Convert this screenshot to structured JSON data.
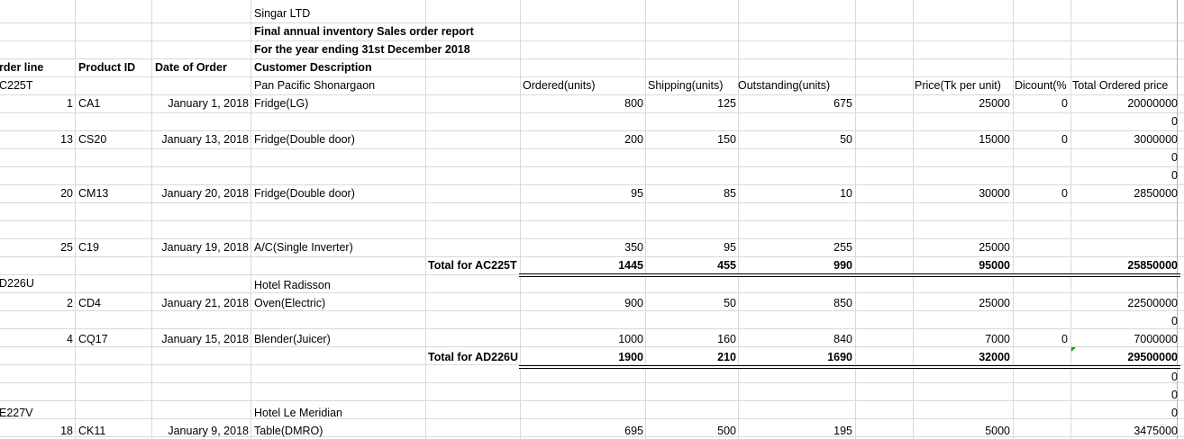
{
  "title": {
    "company": "Singar LTD",
    "report": "Final annual  inventory Sales order report",
    "period": "For the year ending 31st December 2018"
  },
  "headers": {
    "order_line": "rder  line",
    "product_id": "Product ID",
    "date_of_order": "Date of Order",
    "customer_description": "Customer Description",
    "ordered": "Ordered(units)",
    "shipping": "Shipping(units)",
    "outstanding": "Outstanding(units)",
    "price": "Price(Tk per unit)",
    "discount": "Dicount(%",
    "total_ordered_price": "Total Ordered price"
  },
  "groups": [
    {
      "code": "C225T",
      "customer": "Pan Pacific Shonargaon",
      "total_label": "Total for AC225T",
      "totals": {
        "ordered": "1445",
        "shipping": "455",
        "outstanding": "990",
        "price": "95000",
        "total": "25850000"
      }
    },
    {
      "code": "D226U",
      "customer": "Hotel Radisson",
      "total_label": "Total for AD226U",
      "totals": {
        "ordered": "1900",
        "shipping": "210",
        "outstanding": "1690",
        "price": "32000",
        "total": "29500000"
      }
    },
    {
      "code": "E227V",
      "customer": "Hotel Le Meridian"
    }
  ],
  "rows": [
    {
      "line": "1",
      "product": "CA1",
      "date": "January 1, 2018",
      "desc": "Fridge(LG)",
      "ordered": "800",
      "shipping": "125",
      "outstanding": "675",
      "price": "25000",
      "discount": "0",
      "total": "20000000"
    },
    {
      "line": "13",
      "product": "CS20",
      "date": "January 13, 2018",
      "desc": "Fridge(Double door)",
      "ordered": "200",
      "shipping": "150",
      "outstanding": "50",
      "price": "15000",
      "discount": "0",
      "total": "3000000"
    },
    {
      "line": "20",
      "product": "CM13",
      "date": "January 20, 2018",
      "desc": "Fridge(Double door)",
      "ordered": "95",
      "shipping": "85",
      "outstanding": "10",
      "price": "30000",
      "discount": "0",
      "total": "2850000"
    },
    {
      "line": "25",
      "product": "C19",
      "date": "January 19, 2018",
      "desc": "A/C(Single Inverter)",
      "ordered": "350",
      "shipping": "95",
      "outstanding": "255",
      "price": "25000",
      "total": ""
    },
    {
      "line": "2",
      "product": "CD4",
      "date": "January 21, 2018",
      "desc": "Oven(Electric)",
      "ordered": "900",
      "shipping": "50",
      "outstanding": "850",
      "price": "25000",
      "total": "22500000"
    },
    {
      "line": "4",
      "product": "CQ17",
      "date": "January 15, 2018",
      "desc": "Blender(Juicer)",
      "ordered": "1000",
      "shipping": "160",
      "outstanding": "840",
      "price": "7000",
      "discount": "0",
      "total": "7000000"
    },
    {
      "line": "18",
      "product": "CK11",
      "date": "January 9, 2018",
      "desc": "Table(DMRO)",
      "ordered": "695",
      "shipping": "500",
      "outstanding": "195",
      "price": "5000",
      "total": "3475000"
    }
  ],
  "zeros": {
    "value": "0"
  },
  "indicator_color": "#1a9c1a"
}
